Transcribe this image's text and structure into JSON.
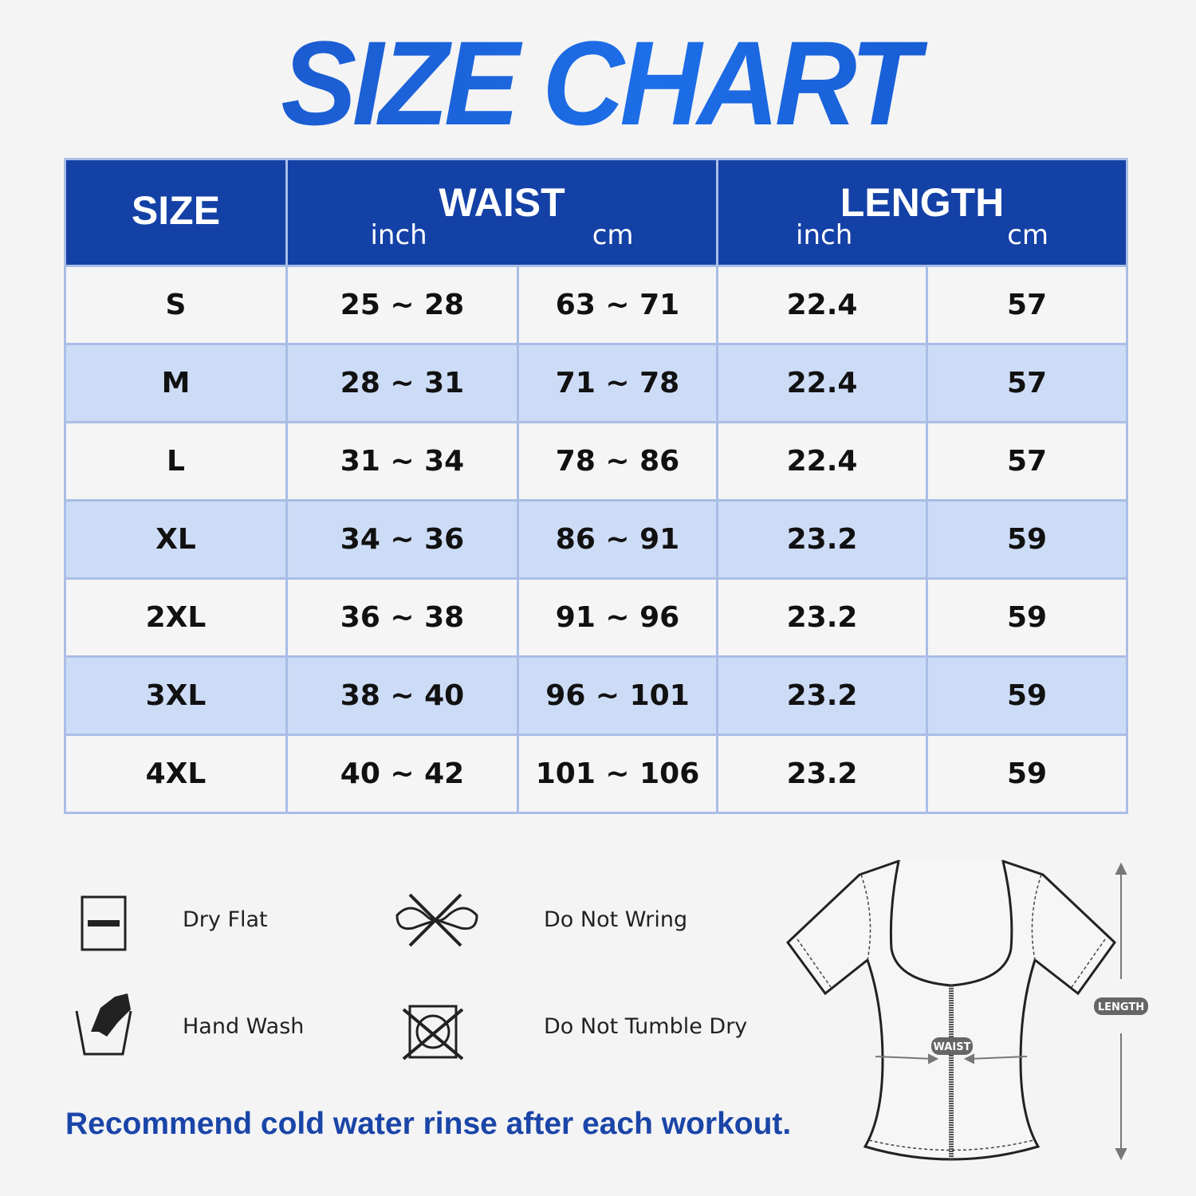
{
  "title": "SIZE CHART",
  "table": {
    "headers": {
      "size": "SIZE",
      "waist": "WAIST",
      "length": "LENGTH",
      "inch": "inch",
      "cm": "cm"
    },
    "rows": [
      {
        "size": "S",
        "waist_in": "25 ~ 28",
        "waist_cm": "63 ~ 71",
        "length_in": "22.4",
        "length_cm": "57"
      },
      {
        "size": "M",
        "waist_in": "28 ~ 31",
        "waist_cm": "71 ~ 78",
        "length_in": "22.4",
        "length_cm": "57"
      },
      {
        "size": "L",
        "waist_in": "31 ~ 34",
        "waist_cm": "78 ~ 86",
        "length_in": "22.4",
        "length_cm": "57"
      },
      {
        "size": "XL",
        "waist_in": "34 ~ 36",
        "waist_cm": "86 ~ 91",
        "length_in": "23.2",
        "length_cm": "59"
      },
      {
        "size": "2XL",
        "waist_in": "36 ~ 38",
        "waist_cm": "91 ~ 96",
        "length_in": "23.2",
        "length_cm": "59"
      },
      {
        "size": "3XL",
        "waist_in": "38 ~ 40",
        "waist_cm": "96 ~ 101",
        "length_in": "23.2",
        "length_cm": "59"
      },
      {
        "size": "4XL",
        "waist_in": "40 ~ 42",
        "waist_cm": "101 ~ 106",
        "length_in": "23.2",
        "length_cm": "59"
      }
    ]
  },
  "care": [
    {
      "icon": "dry-flat-icon",
      "label": "Dry Flat"
    },
    {
      "icon": "do-not-wring-icon",
      "label": "Do Not Wring"
    },
    {
      "icon": "hand-wash-icon",
      "label": "Hand Wash"
    },
    {
      "icon": "do-not-tumble-dry-icon",
      "label": "Do Not Tumble Dry"
    }
  ],
  "note": "Recommend cold water rinse after each workout.",
  "diagram": {
    "waist_label": "WAIST",
    "length_label": "LENGTH"
  },
  "colors": {
    "header": "#1441a6",
    "row_alt": "#cddcf6",
    "title": "#1a5bd6"
  }
}
